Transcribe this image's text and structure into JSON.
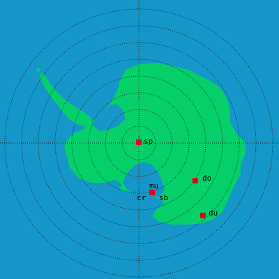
{
  "map": {
    "colors": {
      "ocean": "#1496c8",
      "land": "#05d06a",
      "grid": "#1a1a1a",
      "marker": "#e0001a"
    },
    "stations": [
      {
        "id": "sp",
        "label": "sp",
        "icon": "station-marker-icon"
      },
      {
        "id": "mu",
        "label": "mu",
        "icon": "station-marker-icon"
      },
      {
        "id": "cr",
        "label": "cr",
        "icon": null
      },
      {
        "id": "sb",
        "label": "sb",
        "icon": null
      },
      {
        "id": "do",
        "label": "do",
        "icon": "station-marker-icon"
      },
      {
        "id": "du",
        "label": "du",
        "icon": "station-marker-icon"
      }
    ]
  }
}
